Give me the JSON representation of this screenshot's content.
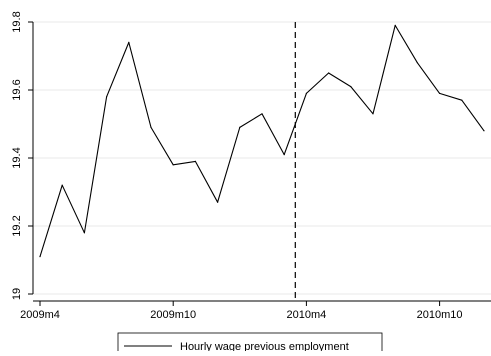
{
  "chart_data": {
    "type": "line",
    "title": "",
    "xlabel": "",
    "ylabel": "",
    "x": [
      "2009m4",
      "2009m5",
      "2009m6",
      "2009m7",
      "2009m8",
      "2009m9",
      "2009m10",
      "2009m11",
      "2009m12",
      "2010m1",
      "2010m2",
      "2010m3",
      "2010m4",
      "2010m5",
      "2010m6",
      "2010m7",
      "2010m8",
      "2010m9",
      "2010m10",
      "2010m11",
      "2010m12"
    ],
    "series": [
      {
        "name": "Hourly wage previous employment",
        "color": "#000000",
        "values": [
          19.11,
          19.32,
          19.18,
          19.58,
          19.74,
          19.49,
          19.38,
          19.39,
          19.27,
          19.49,
          19.53,
          19.41,
          19.59,
          19.65,
          19.61,
          19.53,
          19.79,
          19.68,
          19.59,
          19.57,
          19.48
        ]
      }
    ],
    "ylim": [
      19.0,
      19.8
    ],
    "yticks": [
      "19",
      "19.2",
      "19.4",
      "19.6",
      "19.8"
    ],
    "ytick_values": [
      19.0,
      19.2,
      19.4,
      19.6,
      19.8
    ],
    "xticks": [
      "2009m4",
      "2009m10",
      "2010m4",
      "2010m10"
    ],
    "xtick_indices": [
      0,
      6,
      12,
      18
    ],
    "reference_line": {
      "x_index": 11.5,
      "style": "dashed"
    },
    "grid": "horizontal",
    "legend": {
      "placement": "bottom-center"
    }
  }
}
